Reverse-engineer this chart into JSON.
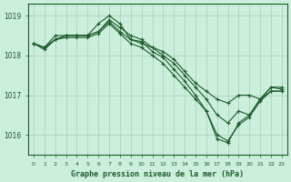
{
  "title": "Graphe pression niveau de la mer (hPa)",
  "xlabel_hours": [
    0,
    1,
    2,
    3,
    4,
    5,
    6,
    7,
    8,
    9,
    10,
    11,
    12,
    13,
    14,
    15,
    16,
    17,
    18,
    19,
    20,
    21,
    22,
    23
  ],
  "ylim": [
    1015.5,
    1019.3
  ],
  "yticks": [
    1016,
    1017,
    1018,
    1019
  ],
  "background_color": "#cceedd",
  "grid_color": "#aaccbb",
  "line_color": "#1a5c2a",
  "marker": "+",
  "series": [
    [
      1018.3,
      1018.2,
      1018.4,
      1018.5,
      1018.5,
      1018.5,
      1018.6,
      1018.9,
      1018.7,
      1018.5,
      1018.4,
      1018.2,
      1018.1,
      1017.9,
      1017.6,
      1017.3,
      1017.1,
      1016.9,
      1016.8,
      1017.0,
      1017.0,
      1016.9,
      1017.1,
      1017.1
    ],
    [
      1018.3,
      1018.2,
      1018.5,
      1018.5,
      1018.5,
      1018.5,
      1018.8,
      1019.0,
      1018.8,
      1018.4,
      1018.3,
      1018.2,
      1018.0,
      1017.8,
      1017.5,
      1017.2,
      1016.9,
      1016.5,
      1016.3,
      1016.6,
      1016.5,
      1016.9,
      1017.2,
      1017.15
    ],
    [
      1018.3,
      1018.2,
      1018.4,
      1018.5,
      1018.5,
      1018.5,
      1018.6,
      1018.85,
      1018.6,
      1018.4,
      1018.35,
      1018.1,
      1017.95,
      1017.65,
      1017.35,
      1017.0,
      1016.6,
      1015.9,
      1015.8,
      1016.3,
      1016.5,
      1016.9,
      1017.2,
      1017.2
    ],
    [
      1018.3,
      1018.15,
      1018.4,
      1018.45,
      1018.45,
      1018.45,
      1018.55,
      1018.8,
      1018.55,
      1018.3,
      1018.2,
      1018.0,
      1017.8,
      1017.5,
      1017.2,
      1016.9,
      1016.6,
      1016.0,
      1015.85,
      1016.25,
      1016.45,
      1016.85,
      1017.1,
      1017.1
    ]
  ]
}
